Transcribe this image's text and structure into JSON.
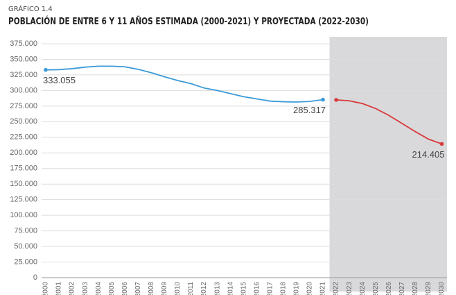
{
  "chart_data": {
    "type": "line",
    "subtitle": "GRÁFICO 1.4",
    "title": "POBLACIÓN DE ENTRE 6 Y 11 AÑOS ESTIMADA (2000-2021) Y PROYECTADA (2022-2030)",
    "categories": [
      "2000",
      "2001",
      "2002",
      "2003",
      "2004",
      "2005",
      "2006",
      "2007",
      "2008",
      "2009",
      "2010",
      "2011",
      "2012",
      "2013",
      "2014",
      "2015",
      "2016",
      "2017",
      "2018",
      "2019",
      "2020",
      "2021",
      "2022",
      "2023",
      "2024",
      "2025",
      "2026",
      "2027",
      "2028",
      "2029",
      "2030"
    ],
    "series": [
      {
        "name": "Estimada",
        "color": "#3a9ad9",
        "values": [
          333055,
          333500,
          335000,
          337500,
          339000,
          339000,
          338000,
          334000,
          328500,
          322000,
          316000,
          311000,
          304000,
          300000,
          295000,
          290000,
          286500,
          283000,
          282000,
          281500,
          282500,
          285317,
          null,
          null,
          null,
          null,
          null,
          null,
          null,
          null,
          null
        ],
        "value_labels": [
          "333.055",
          null,
          null,
          null,
          null,
          null,
          null,
          null,
          null,
          null,
          null,
          null,
          null,
          null,
          null,
          null,
          null,
          null,
          null,
          null,
          null,
          "285.317",
          null,
          null,
          null,
          null,
          null,
          null,
          null,
          null,
          null
        ]
      },
      {
        "name": "Proyectada",
        "color": "#d9383a",
        "values": [
          null,
          null,
          null,
          null,
          null,
          null,
          null,
          null,
          null,
          null,
          null,
          null,
          null,
          null,
          null,
          null,
          null,
          null,
          null,
          null,
          null,
          null,
          285000,
          283500,
          279000,
          271000,
          260000,
          247000,
          234000,
          222000,
          214405
        ],
        "value_labels": [
          null,
          null,
          null,
          null,
          null,
          null,
          null,
          null,
          null,
          null,
          null,
          null,
          null,
          null,
          null,
          null,
          null,
          null,
          null,
          null,
          null,
          null,
          null,
          null,
          null,
          null,
          null,
          null,
          null,
          null,
          "214.405"
        ]
      }
    ],
    "ylim": [
      0,
      375000
    ],
    "yticks": [
      0,
      {
        "value": 25000,
        "label": "25.000"
      },
      {
        "value": 50000,
        "label": "50.000"
      },
      {
        "value": 75000,
        "label": "75.000"
      },
      {
        "value": 100000,
        "label": "100.000"
      },
      {
        "value": 125000,
        "label": "125.000"
      },
      {
        "value": 150000,
        "label": "150.000"
      },
      {
        "value": 175000,
        "label": "175.000"
      },
      {
        "value": 200000,
        "label": "200.000"
      },
      {
        "value": 225000,
        "label": "225.000"
      },
      {
        "value": 250000,
        "label": "250.000"
      },
      {
        "value": 275000,
        "label": "275.000"
      },
      {
        "value": 300000,
        "label": "300.000"
      },
      {
        "value": 325000,
        "label": "325.000"
      },
      {
        "value": 350000,
        "label": "350.000"
      },
      {
        "value": 375000,
        "label": "375.000"
      }
    ],
    "grid": true
  }
}
